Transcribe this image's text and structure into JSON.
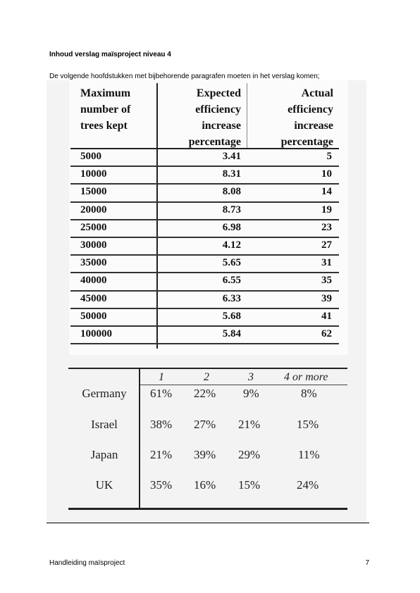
{
  "document": {
    "heading": "Inhoud verslag maïsproject niveau 4",
    "intro": "De volgende hoofdstukken met bijbehorende paragrafen moeten in het verslag komen;"
  },
  "table1": {
    "headers": [
      "Maximum\nnumber of\ntrees kept",
      "Expected\nefficiency\nincrease\npercentage",
      "Actual\nefficiency\nincrease\npercentage"
    ],
    "rows": [
      [
        "5000",
        "3.41",
        "5"
      ],
      [
        "10000",
        "8.31",
        "10"
      ],
      [
        "15000",
        "8.08",
        "14"
      ],
      [
        "20000",
        "8.73",
        "19"
      ],
      [
        "25000",
        "6.98",
        "23"
      ],
      [
        "30000",
        "4.12",
        "27"
      ],
      [
        "35000",
        "5.65",
        "31"
      ],
      [
        "40000",
        "6.55",
        "35"
      ],
      [
        "45000",
        "6.33",
        "39"
      ],
      [
        "50000",
        "5.68",
        "41"
      ],
      [
        "100000",
        "5.84",
        "62"
      ]
    ]
  },
  "table2": {
    "headers": [
      "1",
      "2",
      "3",
      "4 or more"
    ],
    "rows": [
      {
        "country": "Germany",
        "values": [
          "61%",
          "22%",
          "9%",
          "8%"
        ]
      },
      {
        "country": "Israel",
        "values": [
          "38%",
          "27%",
          "21%",
          "15%"
        ]
      },
      {
        "country": "Japan",
        "values": [
          "21%",
          "39%",
          "29%",
          "11%"
        ]
      },
      {
        "country": "UK",
        "values": [
          "35%",
          "16%",
          "15%",
          "24%"
        ]
      }
    ]
  },
  "footer": {
    "left": "Handleiding maïsproject",
    "page_number": "7"
  }
}
